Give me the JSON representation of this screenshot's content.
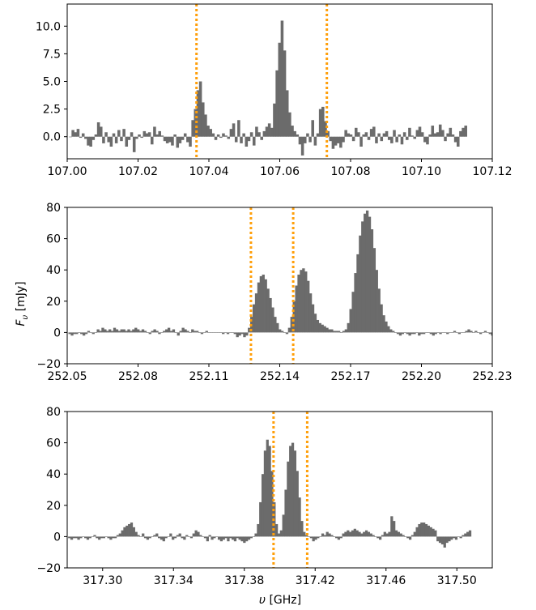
{
  "figure": {
    "ylabel": "F_υ [mJy]",
    "xlabel": "υ [GHz]",
    "bar_color": "#6b6b6b",
    "line_color": "#ff9f0a",
    "line_style": "dotted"
  },
  "chart_data": [
    {
      "type": "bar",
      "xlim": [
        107.0,
        107.12
      ],
      "ylim": [
        -2,
        12
      ],
      "xticks": [
        107.0,
        107.02,
        107.04,
        107.06,
        107.08,
        107.1,
        107.12
      ],
      "xtick_labels": [
        "107.00",
        "107.02",
        "107.04",
        "107.06",
        "107.08",
        "107.10",
        "107.12"
      ],
      "yticks": [
        0.0,
        2.5,
        5.0,
        7.5,
        10.0
      ],
      "ytick_labels": [
        "0.0",
        "2.5",
        "5.0",
        "7.5",
        "10.0"
      ],
      "vlines": [
        107.0365,
        107.0733
      ],
      "series": [
        {
          "x0": 107.0005,
          "dx": 0.00072,
          "values": [
            0.0,
            0.6,
            0.4,
            0.7,
            -0.1,
            0.3,
            -0.2,
            -0.8,
            -0.9,
            -0.3,
            0.2,
            1.3,
            0.9,
            -0.6,
            0.4,
            -0.5,
            -0.9,
            0.3,
            -0.6,
            0.6,
            -0.4,
            0.7,
            -0.9,
            -0.3,
            0.4,
            -1.4,
            -0.2,
            0.2,
            -0.1,
            0.5,
            0.3,
            0.4,
            -0.7,
            0.9,
            0.2,
            0.5,
            0.1,
            -0.4,
            -0.6,
            -0.5,
            -0.8,
            0.2,
            -1.0,
            -0.6,
            -0.3,
            0.3,
            -0.5,
            -0.9,
            1.5,
            2.5,
            4.2,
            5.0,
            3.1,
            2.0,
            1.0,
            0.7,
            0.3,
            -0.3,
            0.2,
            -0.1,
            0.3,
            0.1,
            -0.2,
            0.7,
            1.2,
            -0.5,
            1.5,
            -0.6,
            0.3,
            -0.9,
            -0.4,
            0.4,
            -0.8,
            0.9,
            0.4,
            -0.3,
            0.5,
            0.9,
            1.2,
            0.8,
            3.0,
            6.0,
            8.5,
            10.5,
            7.8,
            4.2,
            2.2,
            1.0,
            0.5,
            0.2,
            -0.7,
            -1.7,
            -0.6,
            0.3,
            -0.5,
            1.5,
            -0.8,
            0.3,
            2.5,
            2.7,
            1.4,
            0.5,
            -0.4,
            -1.1,
            -0.8,
            -0.6,
            -1.0,
            -0.5,
            0.6,
            0.3,
            0.2,
            -0.4,
            0.8,
            0.4,
            -0.9,
            0.2,
            0.4,
            -0.3,
            0.7,
            0.9,
            -0.6,
            0.3,
            -0.4,
            0.3,
            0.5,
            -0.3,
            -0.6,
            0.6,
            -0.5,
            0.2,
            -0.7,
            0.4,
            -0.3,
            0.8,
            0.1,
            -0.2,
            0.6,
            0.9,
            0.4,
            -0.5,
            -0.7,
            0.2,
            1.0,
            0.3,
            0.4,
            1.1,
            0.6,
            -0.4,
            0.3,
            0.8,
            0.2,
            -0.5,
            -0.9,
            0.5,
            0.8,
            1.0
          ]
        }
      ]
    },
    {
      "type": "bar",
      "xlim": [
        252.05,
        252.23
      ],
      "ylim": [
        -20,
        80
      ],
      "xticks": [
        252.05,
        252.08,
        252.11,
        252.14,
        252.17,
        252.2,
        252.23
      ],
      "xtick_labels": [
        "252.05",
        "252.08",
        "252.11",
        "252.14",
        "252.17",
        "252.20",
        "252.23"
      ],
      "yticks": [
        -20,
        0,
        20,
        40,
        60,
        80
      ],
      "ytick_labels": [
        "−20",
        "0",
        "20",
        "40",
        "60",
        "80"
      ],
      "vlines": [
        252.1278,
        252.1457
      ],
      "series": [
        {
          "x0": 252.0505,
          "dx": 0.001,
          "values": [
            -1,
            -2,
            -1,
            -1,
            0,
            -1,
            -2,
            -1,
            1,
            0,
            -1,
            0,
            2,
            1,
            3,
            2,
            1,
            2,
            1,
            3,
            2,
            1,
            2,
            2,
            1,
            2,
            1,
            2,
            3,
            2,
            1,
            2,
            1,
            0,
            -1,
            1,
            2,
            1,
            -1,
            0,
            1,
            2,
            3,
            1,
            2,
            0,
            -2,
            1,
            3,
            2,
            1,
            0,
            2,
            1,
            1,
            0,
            -1,
            0,
            1,
            0,
            0,
            0,
            0,
            0,
            0,
            -1,
            0,
            -1,
            0,
            0,
            -1,
            -3,
            -2,
            -1,
            -3,
            -2,
            3,
            10,
            18,
            25,
            32,
            36,
            37,
            34,
            28,
            22,
            16,
            10,
            6,
            2,
            1,
            0,
            -1,
            3,
            10,
            20,
            30,
            37,
            40,
            41,
            39,
            33,
            25,
            18,
            12,
            8,
            6,
            5,
            4,
            3,
            2,
            2,
            1,
            1,
            1,
            0,
            1,
            2,
            6,
            15,
            26,
            38,
            50,
            62,
            71,
            76,
            78,
            74,
            66,
            54,
            40,
            28,
            18,
            11,
            7,
            4,
            2,
            1,
            0,
            -1,
            -2,
            -1,
            0,
            -1,
            -2,
            -1,
            -1,
            0,
            -2,
            -1,
            -1,
            0,
            0,
            -1,
            -2,
            -1,
            0,
            -1,
            0,
            0,
            -1,
            0,
            0,
            1,
            0,
            -1,
            0,
            0,
            1,
            2,
            1,
            0,
            1,
            0,
            -1,
            0,
            1,
            0,
            -1,
            -2,
            -2,
            -3,
            -1,
            -2
          ]
        }
      ]
    },
    {
      "type": "bar",
      "xlim": [
        317.28,
        317.52
      ],
      "ylim": [
        -20,
        80
      ],
      "xticks": [
        317.3,
        317.34,
        317.38,
        317.42,
        317.46,
        317.5
      ],
      "xtick_labels": [
        "317.30",
        "317.34",
        "317.38",
        "317.42",
        "317.46",
        "317.50"
      ],
      "yticks": [
        -20,
        0,
        20,
        40,
        60,
        80
      ],
      "ytick_labels": [
        "−20",
        "0",
        "20",
        "40",
        "60",
        "80"
      ],
      "vlines": [
        317.3965,
        317.4155
      ],
      "series": [
        {
          "x0": 317.2805,
          "dx": 0.0013,
          "values": [
            -1,
            -2,
            -1,
            -1,
            -2,
            -1,
            0,
            -1,
            -2,
            -1,
            0,
            1,
            -1,
            -2,
            -1,
            -1,
            0,
            -1,
            -2,
            -1,
            -1,
            1,
            2,
            4,
            6,
            7,
            8,
            9,
            6,
            3,
            1,
            0,
            2,
            -1,
            -2,
            -1,
            0,
            1,
            2,
            -1,
            -2,
            -3,
            -1,
            0,
            2,
            -2,
            -1,
            1,
            2,
            -1,
            -2,
            1,
            0,
            -1,
            2,
            4,
            3,
            1,
            0,
            -1,
            -3,
            1,
            -2,
            -1,
            0,
            -2,
            -3,
            -2,
            -1,
            -3,
            -1,
            -2,
            -3,
            -1,
            -2,
            -3,
            -4,
            -3,
            -2,
            -1,
            0,
            2,
            8,
            22,
            40,
            55,
            62,
            58,
            42,
            22,
            8,
            2,
            4,
            14,
            30,
            48,
            58,
            60,
            55,
            42,
            25,
            10,
            3,
            1,
            0,
            -1,
            -3,
            -2,
            -1,
            0,
            2,
            1,
            3,
            2,
            1,
            0,
            -1,
            -2,
            -1,
            2,
            3,
            4,
            3,
            4,
            5,
            4,
            3,
            2,
            3,
            4,
            3,
            2,
            1,
            0,
            -1,
            -2,
            1,
            3,
            2,
            3,
            13,
            10,
            4,
            3,
            2,
            1,
            0,
            -1,
            -2,
            1,
            3,
            6,
            8,
            9,
            9,
            8,
            7,
            6,
            5,
            4,
            -3,
            -4,
            -5,
            -7,
            -4,
            -3,
            -2,
            -1,
            -2,
            0,
            -1,
            1,
            2,
            3,
            4
          ]
        }
      ]
    }
  ]
}
